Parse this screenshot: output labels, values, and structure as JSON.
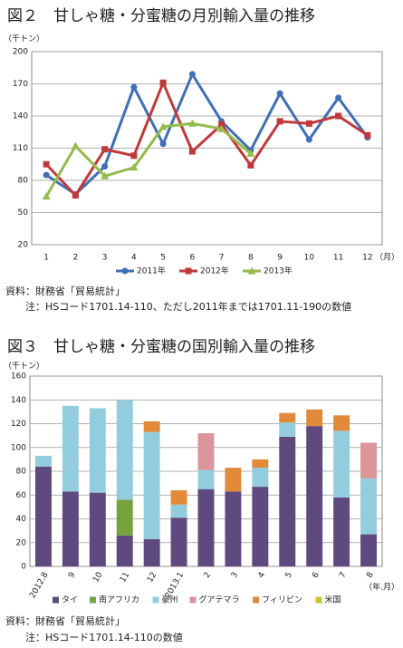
{
  "chart_data": [
    {
      "type": "line",
      "title": "図２　甘しゃ糖・分蜜糖の月別輸入量の推移",
      "y_unit": "（千トン）",
      "x_unit": "（月）",
      "categories": [
        "1",
        "2",
        "3",
        "4",
        "5",
        "6",
        "7",
        "8",
        "9",
        "10",
        "11",
        "12"
      ],
      "ylim": [
        20,
        200
      ],
      "yticks": [
        20,
        50,
        80,
        110,
        140,
        170,
        200
      ],
      "grid": true,
      "series": [
        {
          "name": "2011年",
          "color": "#3f6fb5",
          "marker": "circle",
          "values": [
            85,
            67,
            93,
            167,
            114,
            179,
            135,
            108,
            161,
            118,
            157,
            120
          ]
        },
        {
          "name": "2012年",
          "color": "#c0393b",
          "marker": "square",
          "values": [
            95,
            66,
            109,
            103,
            171,
            107,
            132,
            94,
            135,
            133,
            140,
            122
          ]
        },
        {
          "name": "2013年",
          "color": "#95bb4a",
          "marker": "triangle",
          "values": [
            65,
            112,
            84,
            92,
            130,
            133,
            128,
            105,
            null,
            null,
            null,
            null
          ]
        }
      ],
      "source": "資料：財務省「貿易統計」",
      "note": "注：HSコード1701.14-110、ただし2011年までは1701.11-190の数値"
    },
    {
      "type": "bar",
      "stacked": true,
      "title": "図３　甘しゃ糖・分蜜糖の国別輸入量の推移",
      "y_unit": "（千トン）",
      "x_unit": "（年.月）",
      "categories": [
        "2012.8",
        "9",
        "10",
        "11",
        "12",
        "2013.1",
        "2",
        "3",
        "4",
        "5",
        "6",
        "7",
        "8"
      ],
      "ylim": [
        0,
        160
      ],
      "yticks": [
        0,
        20,
        40,
        60,
        80,
        100,
        120,
        140,
        160
      ],
      "grid": true,
      "series": [
        {
          "name": "タイ",
          "color": "#5e4a7e",
          "values": [
            84,
            63,
            62,
            26,
            23,
            41,
            65,
            63,
            67,
            109,
            118,
            58,
            27
          ]
        },
        {
          "name": "南アフリカ",
          "color": "#77a33f",
          "values": [
            0,
            0,
            0,
            30,
            0,
            0,
            0,
            0,
            0,
            0,
            0,
            0,
            0
          ]
        },
        {
          "name": "豪州",
          "color": "#93cddd",
          "values": [
            9,
            72,
            71,
            84,
            90,
            11,
            16,
            0,
            16,
            12,
            0,
            56,
            47
          ]
        },
        {
          "name": "グアテマラ",
          "color": "#d9959a",
          "values": [
            0,
            0,
            0,
            0,
            0,
            0,
            31,
            0,
            0,
            0,
            0,
            0,
            30
          ]
        },
        {
          "name": "フィリピン",
          "color": "#e08a3a",
          "values": [
            0,
            0,
            0,
            0,
            9,
            12,
            0,
            20,
            7,
            8,
            14,
            13,
            0
          ]
        },
        {
          "name": "米国",
          "color": "#c9c32a",
          "values": [
            0,
            0,
            0,
            0,
            0,
            0,
            0,
            0,
            0,
            0,
            0,
            0,
            0
          ]
        }
      ],
      "source": "資料：財務省「貿易統計」",
      "note": "注：HSコード1701.14-110の数値"
    }
  ]
}
